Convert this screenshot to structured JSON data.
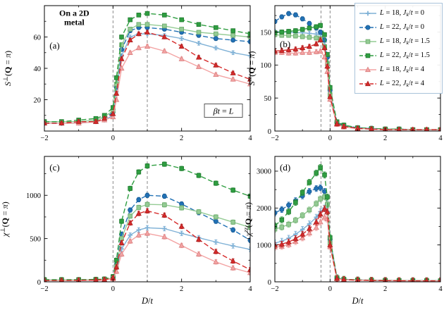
{
  "axes": {
    "xlabel_parts": [
      {
        "t": "D",
        "i": true
      },
      {
        "t": "/"
      },
      {
        "t": "t",
        "i": true
      }
    ]
  },
  "legend": {
    "items": [
      {
        "key": "L18-Jk0",
        "color": "#7fb1d6",
        "edge": "#5d94be",
        "marker": "plus",
        "dash": false,
        "parts": [
          {
            "t": "L",
            "i": true
          },
          {
            "t": " = 18, "
          },
          {
            "t": "J",
            "i": true
          },
          {
            "t": "k",
            "sub": true,
            "i": true
          },
          {
            "t": "/"
          },
          {
            "t": "t",
            "i": true
          },
          {
            "t": " = 0"
          }
        ]
      },
      {
        "key": "L22-Jk0",
        "color": "#2171b5",
        "edge": "#1a5a91",
        "marker": "circle",
        "dash": true,
        "parts": [
          {
            "t": "L",
            "i": true
          },
          {
            "t": " = 22, "
          },
          {
            "t": "J",
            "i": true
          },
          {
            "t": "k",
            "sub": true,
            "i": true
          },
          {
            "t": "/"
          },
          {
            "t": "t",
            "i": true
          },
          {
            "t": " = 0"
          }
        ]
      },
      {
        "key": "L18-Jk1.5",
        "color": "#94cb94",
        "edge": "#6aa96a",
        "marker": "square",
        "dash": false,
        "parts": [
          {
            "t": "L",
            "i": true
          },
          {
            "t": " = 18, "
          },
          {
            "t": "J",
            "i": true
          },
          {
            "t": "k",
            "sub": true,
            "i": true
          },
          {
            "t": "/"
          },
          {
            "t": "t",
            "i": true
          },
          {
            "t": " = 1.5"
          }
        ]
      },
      {
        "key": "L22-Jk1.5",
        "color": "#2f9e41",
        "edge": "#217a30",
        "marker": "square",
        "dash": true,
        "parts": [
          {
            "t": "L",
            "i": true
          },
          {
            "t": " = 22, "
          },
          {
            "t": "J",
            "i": true
          },
          {
            "t": "k",
            "sub": true,
            "i": true
          },
          {
            "t": "/"
          },
          {
            "t": "t",
            "i": true
          },
          {
            "t": " = 1.5"
          }
        ]
      },
      {
        "key": "L18-Jk4",
        "color": "#f3a3a3",
        "edge": "#d97f7f",
        "marker": "triangle",
        "dash": false,
        "parts": [
          {
            "t": "L",
            "i": true
          },
          {
            "t": " = 18, "
          },
          {
            "t": "J",
            "i": true
          },
          {
            "t": "k",
            "sub": true,
            "i": true
          },
          {
            "t": "/"
          },
          {
            "t": "t",
            "i": true
          },
          {
            "t": " = 4"
          }
        ]
      },
      {
        "key": "L22-Jk4",
        "color": "#d62a2a",
        "edge": "#a81f1f",
        "marker": "triangle",
        "dash": true,
        "parts": [
          {
            "t": "L",
            "i": true
          },
          {
            "t": " = 22, "
          },
          {
            "t": "J",
            "i": true
          },
          {
            "t": "k",
            "sub": true,
            "i": true
          },
          {
            "t": "/"
          },
          {
            "t": "t",
            "i": true
          },
          {
            "t": " = 4"
          }
        ]
      }
    ]
  },
  "chart_data": [
    {
      "id": "a",
      "type": "line",
      "ylabel_parts": [
        {
          "t": "S",
          "i": true
        },
        {
          "t": "⊥",
          "sup": true
        },
        {
          "t": "("
        },
        {
          "t": "Q",
          "b": true
        },
        {
          "t": " = "
        },
        {
          "t": "π",
          "i": true
        },
        {
          "t": ")"
        }
      ],
      "xlim": [
        -2,
        4
      ],
      "ylim": [
        0,
        80
      ],
      "xticks": [
        -2,
        0,
        2,
        4
      ],
      "xminor": [
        -1,
        1,
        3
      ],
      "yticks": [
        20,
        40,
        60
      ],
      "yminor": [
        10,
        30,
        50,
        70
      ],
      "vlines": [
        0,
        1
      ],
      "err": 1.2,
      "show_xlabel": false,
      "x": [
        -2,
        -1.5,
        -1,
        -0.5,
        -0.25,
        0,
        0.1,
        0.25,
        0.5,
        0.75,
        1,
        1.5,
        2,
        2.5,
        3,
        3.5,
        4
      ],
      "series": [
        {
          "name": "L=18, Jk/t=0",
          "y": [
            5,
            5,
            5,
            6,
            7,
            10,
            25,
            48,
            60,
            62,
            62,
            61,
            59,
            56,
            53,
            50,
            48
          ]
        },
        {
          "name": "L=22, Jk/t=0",
          "y": [
            5,
            5,
            6,
            6,
            8,
            12,
            28,
            52,
            64,
            66,
            66,
            65,
            63,
            61,
            59,
            58,
            57
          ]
        },
        {
          "name": "L=18, Jk/t=1.5",
          "y": [
            6,
            6,
            6,
            7,
            9,
            13,
            30,
            55,
            65,
            68,
            68,
            67,
            65,
            63,
            62,
            61,
            60
          ]
        },
        {
          "name": "L=22, Jk/t=1.5",
          "y": [
            6,
            6,
            7,
            8,
            10,
            15,
            34,
            60,
            71,
            74,
            75,
            74,
            71,
            68,
            66,
            64,
            62
          ]
        },
        {
          "name": "L=18, Jk/t=4",
          "y": [
            5,
            5,
            5,
            6,
            7,
            9,
            20,
            40,
            50,
            53,
            54,
            51,
            46,
            41,
            36,
            33,
            30
          ]
        },
        {
          "name": "L=22, Jk/t=4",
          "y": [
            5,
            5,
            6,
            6,
            8,
            11,
            24,
            46,
            58,
            62,
            63,
            60,
            54,
            47,
            42,
            37,
            33
          ]
        }
      ],
      "texts": [
        {
          "name": "metal-annotation",
          "lines": [
            "On a 2D",
            "metal"
          ],
          "fx": 0.145,
          "fy": 0.02,
          "bold": true,
          "size": 12,
          "anchor": "middle"
        },
        {
          "name": "panel-label-a",
          "lines": [
            "(a)"
          ],
          "fx": 0.025,
          "fy": 0.28,
          "size": 13
        }
      ],
      "boxed": {
        "name": "beta-annotation",
        "parts": [
          {
            "t": "β",
            "i": true
          },
          {
            "t": "t",
            "i": true
          },
          {
            "t": " = "
          },
          {
            "t": "L",
            "i": true
          }
        ],
        "fx": 0.87,
        "fy": 0.84
      }
    },
    {
      "id": "b",
      "type": "line",
      "ylabel_parts": [
        {
          "t": "S",
          "i": true
        },
        {
          "t": "zz",
          "sup": true,
          "i": true
        },
        {
          "t": "("
        },
        {
          "t": "Q",
          "b": true
        },
        {
          "t": " = "
        },
        {
          "t": "π",
          "i": true
        },
        {
          "t": ")"
        }
      ],
      "xlim": [
        -2,
        4
      ],
      "ylim": [
        0,
        190
      ],
      "xticks": [
        -2,
        0,
        2,
        4
      ],
      "xminor": [
        -1,
        1,
        3
      ],
      "yticks": [
        0,
        50,
        100,
        150
      ],
      "yminor": [
        25,
        75,
        125,
        175
      ],
      "vlines": [
        -0.33,
        0
      ],
      "err": 3.2,
      "show_xlabel": false,
      "x": [
        -2,
        -1.75,
        -1.5,
        -1.25,
        -1,
        -0.75,
        -0.5,
        -0.35,
        -0.2,
        -0.1,
        0,
        0.25,
        0.5,
        1,
        1.5,
        2,
        2.5,
        3,
        3.5,
        4
      ],
      "series": [
        {
          "name": "L=18, Jk/t=0",
          "y": [
            151,
            150,
            150,
            149,
            149,
            148,
            147,
            146,
            135,
            110,
            60,
            12,
            8,
            5,
            4,
            3,
            3,
            2,
            2,
            2
          ]
        },
        {
          "name": "L=22, Jk/t=0",
          "y": [
            166,
            173,
            178,
            176,
            170,
            163,
            156,
            150,
            138,
            112,
            62,
            13,
            8,
            5,
            4,
            3,
            3,
            2,
            2,
            2
          ]
        },
        {
          "name": "L=18, Jk/t=1.5",
          "y": [
            146,
            145,
            145,
            144,
            143,
            142,
            141,
            140,
            128,
            102,
            55,
            11,
            7,
            4,
            3,
            3,
            2,
            2,
            2,
            2
          ]
        },
        {
          "name": "L=22, Jk/t=1.5",
          "y": [
            149,
            150,
            151,
            152,
            154,
            156,
            158,
            160,
            146,
            116,
            66,
            14,
            9,
            5,
            4,
            3,
            3,
            2,
            2,
            2
          ]
        },
        {
          "name": "L=18, Jk/t=4",
          "y": [
            119,
            119,
            118,
            118,
            119,
            119,
            120,
            121,
            112,
            90,
            48,
            10,
            6,
            4,
            3,
            2,
            2,
            2,
            2,
            2
          ]
        },
        {
          "name": "L=22, Jk/t=4",
          "y": [
            121,
            122,
            123,
            124,
            126,
            128,
            132,
            138,
            126,
            98,
            52,
            11,
            7,
            4,
            3,
            2,
            2,
            2,
            2,
            2
          ]
        }
      ],
      "texts": [
        {
          "name": "panel-label-b",
          "lines": [
            "(b)"
          ],
          "fx": 0.03,
          "fy": 0.27,
          "size": 13
        }
      ]
    },
    {
      "id": "c",
      "type": "line",
      "ylabel_parts": [
        {
          "t": "χ",
          "i": true
        },
        {
          "t": "⊥",
          "sup": true
        },
        {
          "t": "("
        },
        {
          "t": "Q",
          "b": true
        },
        {
          "t": " = "
        },
        {
          "t": "π",
          "i": true
        },
        {
          "t": ")"
        }
      ],
      "xlim": [
        -2,
        4
      ],
      "ylim": [
        0,
        1450
      ],
      "xticks": [
        -2,
        0,
        2,
        4
      ],
      "xminor": [
        -1,
        1,
        3
      ],
      "yticks": [
        0,
        500,
        1000
      ],
      "yminor": [
        250,
        750,
        1250
      ],
      "vlines": [
        0,
        1
      ],
      "err": 26,
      "show_xlabel": true,
      "x": [
        -2,
        -1.5,
        -1,
        -0.5,
        -0.25,
        0,
        0.1,
        0.25,
        0.5,
        0.75,
        1,
        1.5,
        2,
        2.5,
        3,
        3.5,
        4
      ],
      "series": [
        {
          "name": "L=18, Jk/t=0",
          "y": [
            20,
            20,
            20,
            22,
            25,
            40,
            150,
            380,
            540,
            600,
            625,
            615,
            560,
            510,
            460,
            415,
            375
          ]
        },
        {
          "name": "L=22, Jk/t=0",
          "y": [
            20,
            20,
            22,
            24,
            28,
            50,
            200,
            550,
            830,
            950,
            1000,
            990,
            900,
            800,
            700,
            600,
            480
          ]
        },
        {
          "name": "L=18, Jk/t=1.5",
          "y": [
            20,
            20,
            22,
            24,
            28,
            45,
            180,
            500,
            760,
            860,
            895,
            890,
            855,
            810,
            750,
            690,
            630
          ]
        },
        {
          "name": "L=22, Jk/t=1.5",
          "y": [
            25,
            25,
            25,
            28,
            32,
            60,
            250,
            700,
            1080,
            1270,
            1340,
            1360,
            1310,
            1230,
            1140,
            1060,
            990
          ]
        },
        {
          "name": "L=18, Jk/t=4",
          "y": [
            15,
            15,
            15,
            18,
            22,
            35,
            120,
            320,
            470,
            540,
            560,
            520,
            420,
            320,
            230,
            160,
            105
          ]
        },
        {
          "name": "L=22, Jk/t=4",
          "y": [
            15,
            15,
            18,
            20,
            25,
            45,
            170,
            450,
            680,
            790,
            820,
            770,
            640,
            490,
            350,
            240,
            140
          ]
        }
      ],
      "texts": [
        {
          "name": "panel-label-c",
          "lines": [
            "(c)"
          ],
          "fx": 0.025,
          "fy": 0.05,
          "size": 13
        }
      ]
    },
    {
      "id": "d",
      "type": "line",
      "ylabel_parts": [
        {
          "t": "χ",
          "i": true
        },
        {
          "t": "zz",
          "sup": true,
          "i": true
        },
        {
          "t": "("
        },
        {
          "t": "Q",
          "b": true
        },
        {
          "t": " = "
        },
        {
          "t": "π",
          "i": true
        },
        {
          "t": ")"
        }
      ],
      "xlim": [
        -2,
        4
      ],
      "ylim": [
        0,
        3400
      ],
      "xticks": [
        -2,
        0,
        2,
        4
      ],
      "xminor": [
        -1,
        1,
        3
      ],
      "yticks": [
        0,
        1000,
        2000,
        3000
      ],
      "yminor": [
        500,
        1500,
        2500
      ],
      "vlines": [
        -0.33,
        0
      ],
      "err": 80,
      "show_xlabel": true,
      "x": [
        -2,
        -1.75,
        -1.5,
        -1.25,
        -1,
        -0.75,
        -0.5,
        -0.35,
        -0.2,
        -0.1,
        0,
        0.25,
        0.5,
        1,
        1.5,
        2,
        2.5,
        3,
        3.5,
        4
      ],
      "series": [
        {
          "name": "L=18, Jk/t=0",
          "y": [
            1050,
            1100,
            1180,
            1290,
            1420,
            1570,
            1750,
            1900,
            2000,
            1900,
            1100,
            90,
            60,
            45,
            40,
            35,
            32,
            30,
            28,
            27
          ]
        },
        {
          "name": "L=22, Jk/t=0",
          "y": [
            1870,
            1960,
            2080,
            2200,
            2330,
            2450,
            2530,
            2550,
            2450,
            2100,
            1150,
            100,
            65,
            50,
            42,
            38,
            34,
            32,
            30,
            28
          ]
        },
        {
          "name": "L=18, Jk/t=1.5",
          "y": [
            1430,
            1480,
            1560,
            1670,
            1800,
            1950,
            2120,
            2250,
            2300,
            2100,
            1050,
            85,
            58,
            45,
            38,
            34,
            31,
            29,
            27,
            26
          ]
        },
        {
          "name": "L=22, Jk/t=1.5",
          "y": [
            1520,
            1680,
            1900,
            2150,
            2420,
            2700,
            2950,
            3100,
            2900,
            2300,
            1200,
            110,
            70,
            52,
            44,
            38,
            35,
            32,
            30,
            28
          ]
        },
        {
          "name": "L=18, Jk/t=4",
          "y": [
            940,
            960,
            1010,
            1090,
            1190,
            1320,
            1470,
            1620,
            1750,
            1700,
            950,
            80,
            55,
            42,
            36,
            32,
            29,
            27,
            26,
            25
          ]
        },
        {
          "name": "L=22, Jk/t=4",
          "y": [
            990,
            1020,
            1080,
            1170,
            1290,
            1440,
            1620,
            1830,
            1980,
            1900,
            1000,
            90,
            60,
            46,
            39,
            34,
            31,
            29,
            27,
            26
          ]
        }
      ],
      "texts": [
        {
          "name": "panel-label-d",
          "lines": [
            "(d)"
          ],
          "fx": 0.03,
          "fy": 0.05,
          "size": 13
        }
      ]
    }
  ]
}
